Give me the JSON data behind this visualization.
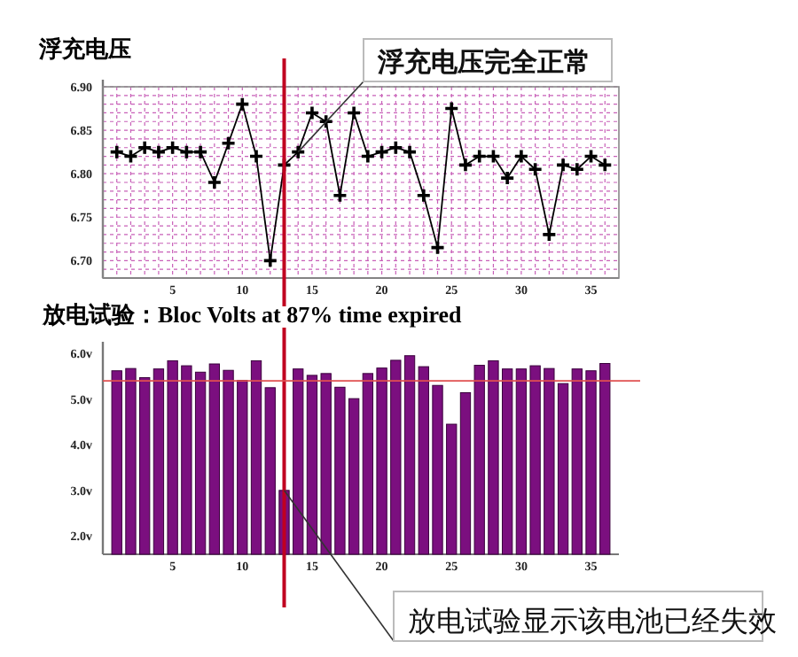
{
  "chart_data": [
    {
      "type": "line",
      "title": "浮充电压",
      "x": [
        1,
        2,
        3,
        4,
        5,
        6,
        7,
        8,
        9,
        10,
        11,
        12,
        13,
        14,
        15,
        16,
        17,
        18,
        19,
        20,
        21,
        22,
        23,
        24,
        25,
        26,
        27,
        28,
        29,
        30,
        31,
        32,
        33,
        34,
        35,
        36
      ],
      "series": [
        {
          "color": "#000000",
          "values": [
            6.825,
            6.82,
            6.83,
            6.825,
            6.83,
            6.825,
            6.825,
            6.79,
            6.835,
            6.88,
            6.82,
            6.7,
            6.81,
            6.825,
            6.87,
            6.86,
            6.775,
            6.87,
            6.82,
            6.825,
            6.83,
            6.825,
            6.775,
            6.715,
            6.875,
            6.81,
            6.82,
            6.82,
            6.795,
            6.82,
            6.805,
            6.73,
            6.81,
            6.805,
            6.82,
            6.81
          ]
        }
      ],
      "xlim": [
        0,
        37
      ],
      "xticks": [
        {
          "value": 1,
          "label": null
        },
        {
          "value": 2,
          "label": null
        },
        {
          "value": 3,
          "label": null
        },
        {
          "value": 4,
          "label": null
        },
        5,
        {
          "value": 6,
          "label": null
        },
        {
          "value": 7,
          "label": null
        },
        {
          "value": 8,
          "label": null
        },
        {
          "value": 9,
          "label": null
        },
        10,
        {
          "value": 11,
          "label": null
        },
        {
          "value": 12,
          "label": null
        },
        {
          "value": 13,
          "label": null
        },
        {
          "value": 14,
          "label": null
        },
        15,
        {
          "value": 16,
          "label": null
        },
        {
          "value": 17,
          "label": null
        },
        {
          "value": 18,
          "label": null
        },
        {
          "value": 19,
          "label": null
        },
        20,
        {
          "value": 21,
          "label": null
        },
        {
          "value": 22,
          "label": null
        },
        {
          "value": 23,
          "label": null
        },
        {
          "value": 24,
          "label": null
        },
        25,
        {
          "value": 26,
          "label": null
        },
        {
          "value": 27,
          "label": null
        },
        {
          "value": 28,
          "label": null
        },
        {
          "value": 29,
          "label": null
        },
        30,
        {
          "value": 31,
          "label": null
        },
        {
          "value": 32,
          "label": null
        },
        {
          "value": 33,
          "label": null
        },
        {
          "value": 34,
          "label": null
        },
        35,
        {
          "value": 36,
          "label": null
        }
      ],
      "ylim": [
        6.68,
        6.9
      ],
      "yticks": [
        {
          "value": 6.68,
          "label": null
        },
        {
          "value": 6.69,
          "label": null
        },
        {
          "value": 6.7,
          "label": "6.70"
        },
        {
          "value": 6.71,
          "label": null
        },
        {
          "value": 6.72,
          "label": null
        },
        {
          "value": 6.73,
          "label": null
        },
        {
          "value": 6.74,
          "label": null
        },
        {
          "value": 6.75,
          "label": "6.75"
        },
        {
          "value": 6.76,
          "label": null
        },
        {
          "value": 6.77,
          "label": null
        },
        {
          "value": 6.78,
          "label": null
        },
        {
          "value": 6.79,
          "label": null
        },
        {
          "value": 6.8,
          "label": "6.80"
        },
        {
          "value": 6.81,
          "label": null
        },
        {
          "value": 6.82,
          "label": null
        },
        {
          "value": 6.83,
          "label": null
        },
        {
          "value": 6.84,
          "label": null
        },
        {
          "value": 6.85,
          "label": "6.85"
        },
        {
          "value": 6.86,
          "label": null
        },
        {
          "value": 6.87,
          "label": null
        },
        {
          "value": 6.88,
          "label": null
        },
        {
          "value": 6.89,
          "label": null
        },
        {
          "value": 6.9,
          "label": "6.90"
        }
      ],
      "grid": true,
      "marker": "cross",
      "line_style": "solid",
      "ref_lines": [
        {
          "axis": "x",
          "value": 13,
          "label": null,
          "color": "#c00020"
        }
      ],
      "annotations": [
        {
          "text": "浮充电压完全正常",
          "x": 14,
          "y": 6.825
        }
      ]
    },
    {
      "type": "bar",
      "title": "放电试验：Bloc Volts at 87% time expired",
      "x": [
        1,
        2,
        3,
        4,
        5,
        6,
        7,
        8,
        9,
        10,
        11,
        12,
        13,
        14,
        15,
        16,
        17,
        18,
        19,
        20,
        21,
        22,
        23,
        24,
        25,
        26,
        27,
        28,
        29,
        30,
        31,
        32,
        33,
        34,
        35,
        36
      ],
      "values": [
        5.62,
        5.67,
        5.47,
        5.66,
        5.84,
        5.73,
        5.59,
        5.77,
        5.63,
        5.41,
        5.84,
        5.25,
        3.0,
        5.66,
        5.52,
        5.56,
        5.26,
        5.01,
        5.56,
        5.68,
        5.85,
        5.95,
        5.71,
        5.3,
        4.45,
        5.14,
        5.74,
        5.84,
        5.66,
        5.66,
        5.73,
        5.67,
        5.34,
        5.66,
        5.62,
        5.78
      ],
      "color": "#7b0f7f",
      "xlim": [
        0,
        37
      ],
      "xticks": [
        5,
        10,
        15,
        20,
        25,
        30,
        35
      ],
      "ylim": [
        1.6,
        6.1
      ],
      "yticks": [
        {
          "value": 2,
          "label": "2.0v"
        },
        {
          "value": 3,
          "label": "3.0v"
        },
        {
          "value": 4,
          "label": "4.0v"
        },
        {
          "value": 5,
          "label": "5.0v"
        },
        {
          "value": 6,
          "label": "6.0v"
        }
      ],
      "ref_lines": [
        {
          "axis": "x",
          "value": 13,
          "label": null,
          "color": "#c00020"
        },
        {
          "axis": "y",
          "value": 5.4,
          "label": null,
          "color": "#e05050"
        }
      ],
      "annotations": [
        {
          "text": "放电试验显示该电池已经失效",
          "x": 13,
          "y": 3.0
        }
      ]
    }
  ]
}
